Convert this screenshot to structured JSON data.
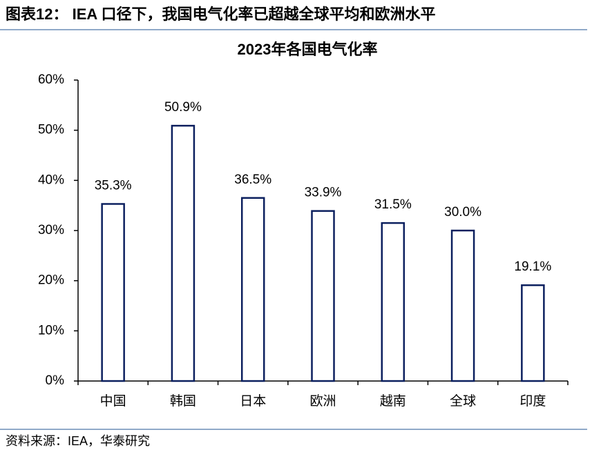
{
  "header": {
    "title": "图表12： IEA 口径下，我国电气化率已超越全球平均和欧洲水平"
  },
  "chart_data": {
    "type": "bar",
    "title": "2023年各国电气化率",
    "categories": [
      "中国",
      "韩国",
      "日本",
      "欧洲",
      "越南",
      "全球",
      "印度"
    ],
    "values": [
      35.3,
      50.9,
      36.5,
      33.9,
      31.5,
      30.0,
      19.1
    ],
    "value_labels": [
      "35.3%",
      "50.9%",
      "36.5%",
      "33.9%",
      "31.5%",
      "30.0%",
      "19.1%"
    ],
    "color": "#0b1f5e",
    "ylim": [
      0,
      60
    ],
    "yticks": [
      {
        "value": 0,
        "label": "0%"
      },
      {
        "value": 10,
        "label": "10%"
      },
      {
        "value": 20,
        "label": "20%"
      },
      {
        "value": 30,
        "label": "30%"
      },
      {
        "value": 40,
        "label": "40%"
      },
      {
        "value": 50,
        "label": "50%"
      },
      {
        "value": 60,
        "label": "60%"
      }
    ],
    "grid": false
  },
  "footer": {
    "source": "资料来源：IEA，华泰研究"
  }
}
